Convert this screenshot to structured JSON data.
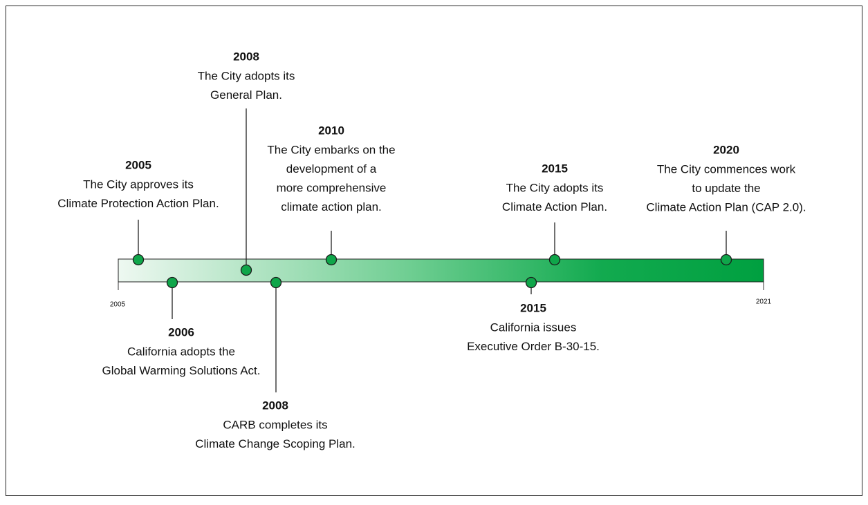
{
  "timeline": {
    "start_label": "2005",
    "end_label": "2021",
    "events": [
      {
        "year": "2005",
        "lines": [
          "The City approves its",
          "Climate Protection Action Plan."
        ]
      },
      {
        "year": "2006",
        "lines": [
          "California adopts the",
          "Global Warming Solutions Act."
        ]
      },
      {
        "year": "2008",
        "lines": [
          "The City adopts its",
          "General Plan."
        ]
      },
      {
        "year": "2008",
        "lines": [
          "CARB completes its",
          "Climate Change Scoping Plan."
        ]
      },
      {
        "year": "2010",
        "lines": [
          "The City embarks on the",
          "development of a",
          "more comprehensive",
          "climate action plan."
        ]
      },
      {
        "year": "2015",
        "lines": [
          "California issues",
          "Executive Order B-30-15."
        ]
      },
      {
        "year": "2015",
        "lines": [
          "The City adopts its",
          "Climate Action Plan."
        ]
      },
      {
        "year": "2020",
        "lines": [
          "The City commences work",
          "to update the",
          "Climate Action Plan (CAP 2.0)."
        ]
      }
    ]
  }
}
